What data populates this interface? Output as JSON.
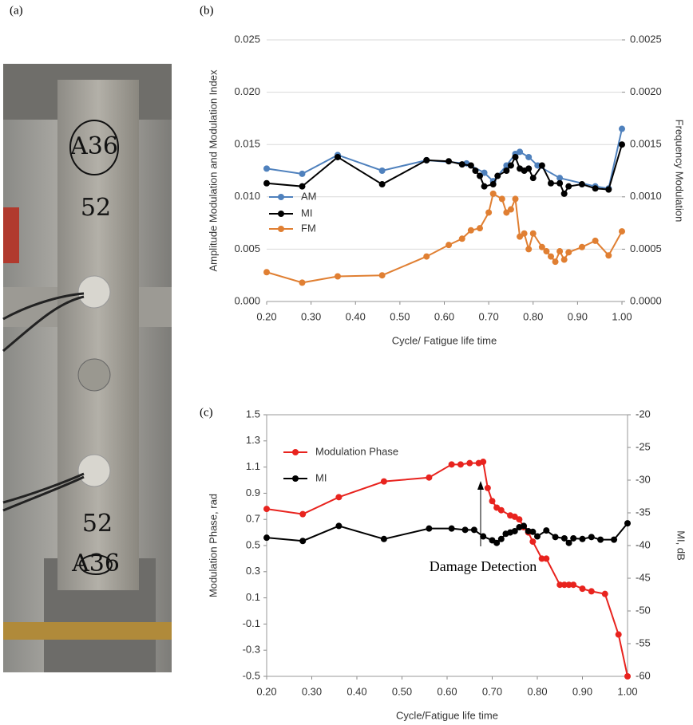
{
  "photo": {
    "label": "(a)",
    "texts": [
      "A36",
      "52",
      "52",
      "A36"
    ]
  },
  "chart_data": [
    {
      "type": "line",
      "label": "(b)",
      "x_label": "Cycle/ Fatigue life time",
      "y_label": "Amplitude Modulation and Modulation Index",
      "y2_label": "Frequency Modulation",
      "xlim": [
        0.2,
        1.0
      ],
      "xticks": [
        {
          "value": 0.2,
          "label": "0.20"
        },
        {
          "value": 0.3,
          "label": "0.30"
        },
        {
          "value": 0.4,
          "label": "0.40"
        },
        {
          "value": 0.5,
          "label": "0.50"
        },
        {
          "value": 0.6,
          "label": "0.60"
        },
        {
          "value": 0.7,
          "label": "0.70"
        },
        {
          "value": 0.8,
          "label": "0.80"
        },
        {
          "value": 0.9,
          "label": "0.90"
        },
        {
          "value": 1.0,
          "label": "1.00"
        }
      ],
      "ylim": [
        0,
        0.025
      ],
      "yticks": [
        {
          "value": 0,
          "label": "0.000"
        },
        {
          "value": 0.005,
          "label": "0.005"
        },
        {
          "value": 0.01,
          "label": "0.010"
        },
        {
          "value": 0.015,
          "label": "0.015"
        },
        {
          "value": 0.02,
          "label": "0.020"
        },
        {
          "value": 0.025,
          "label": "0.025"
        }
      ],
      "y2lim": [
        0,
        0.0025
      ],
      "y2ticks": [
        {
          "value": 0,
          "label": "0.0000"
        },
        {
          "value": 0.0005,
          "label": "0.0005"
        },
        {
          "value": 0.001,
          "label": "0.0010"
        },
        {
          "value": 0.0015,
          "label": "0.0015"
        },
        {
          "value": 0.002,
          "label": "0.0020"
        },
        {
          "value": 0.0025,
          "label": "0.0025"
        }
      ],
      "grid": true,
      "series": [
        {
          "name": "AM",
          "color": "#4f81bd",
          "x": [
            0.2,
            0.28,
            0.36,
            0.46,
            0.56,
            0.65,
            0.69,
            0.71,
            0.74,
            0.76,
            0.77,
            0.79,
            0.81,
            0.86,
            0.94,
            0.97,
            1.0
          ],
          "values": [
            0.0127,
            0.0122,
            0.014,
            0.0125,
            0.0135,
            0.0132,
            0.0123,
            0.0115,
            0.013,
            0.0141,
            0.0143,
            0.0138,
            0.013,
            0.0118,
            0.011,
            0.0108,
            0.0165
          ]
        },
        {
          "name": "MI",
          "color": "#000000",
          "x": [
            0.2,
            0.28,
            0.36,
            0.46,
            0.56,
            0.61,
            0.64,
            0.66,
            0.67,
            0.68,
            0.69,
            0.71,
            0.72,
            0.74,
            0.75,
            0.76,
            0.77,
            0.78,
            0.79,
            0.8,
            0.82,
            0.84,
            0.86,
            0.87,
            0.88,
            0.91,
            0.94,
            0.97,
            1.0
          ],
          "values": [
            0.0113,
            0.011,
            0.0138,
            0.0112,
            0.0135,
            0.0134,
            0.0131,
            0.013,
            0.0125,
            0.012,
            0.011,
            0.0112,
            0.012,
            0.0125,
            0.013,
            0.0138,
            0.0127,
            0.0125,
            0.0127,
            0.0118,
            0.013,
            0.0113,
            0.0113,
            0.0103,
            0.011,
            0.0112,
            0.0108,
            0.0107,
            0.015
          ]
        },
        {
          "name": "FM",
          "color": "#e07f32",
          "axis": "y2",
          "x": [
            0.2,
            0.28,
            0.36,
            0.46,
            0.56,
            0.61,
            0.64,
            0.66,
            0.68,
            0.7,
            0.71,
            0.73,
            0.74,
            0.75,
            0.76,
            0.77,
            0.78,
            0.79,
            0.8,
            0.82,
            0.83,
            0.84,
            0.85,
            0.86,
            0.87,
            0.88,
            0.91,
            0.94,
            0.97,
            1.0
          ],
          "values": [
            0.00028,
            0.00018,
            0.00024,
            0.00025,
            0.00043,
            0.00054,
            0.0006,
            0.00068,
            0.0007,
            0.00085,
            0.00103,
            0.00098,
            0.00085,
            0.00088,
            0.00098,
            0.00062,
            0.00065,
            0.0005,
            0.00065,
            0.00052,
            0.00048,
            0.00043,
            0.00038,
            0.00048,
            0.0004,
            0.00047,
            0.00052,
            0.00058,
            0.00044,
            0.00067
          ]
        }
      ]
    },
    {
      "type": "line",
      "label": "(c)",
      "x_label": "Cycle/Fatigue life time",
      "y_label": "Modulation Phase, rad",
      "y2_label": "MI, dB",
      "annotation": "Damage Detection",
      "xlim": [
        0.2,
        1.0
      ],
      "xticks": [
        {
          "value": 0.2,
          "label": "0.20"
        },
        {
          "value": 0.3,
          "label": "0.30"
        },
        {
          "value": 0.4,
          "label": "0.40"
        },
        {
          "value": 0.5,
          "label": "0.50"
        },
        {
          "value": 0.6,
          "label": "0.60"
        },
        {
          "value": 0.7,
          "label": "0.70"
        },
        {
          "value": 0.8,
          "label": "0.80"
        },
        {
          "value": 0.9,
          "label": "0.90"
        },
        {
          "value": 1.0,
          "label": "1.00"
        }
      ],
      "ylim": [
        -0.5,
        1.5
      ],
      "yticks": [
        -0.5,
        -0.3,
        -0.1,
        0.1,
        0.3,
        0.5,
        0.7,
        0.9,
        1.1,
        1.3,
        1.5
      ],
      "y2lim": [
        -60,
        -20
      ],
      "y2ticks": [
        -60,
        -55,
        -50,
        -45,
        -40,
        -35,
        -30,
        -25,
        -20
      ],
      "grid": false,
      "series": [
        {
          "name": "Modulation Phase",
          "color": "#e8231e",
          "x": [
            0.2,
            0.28,
            0.36,
            0.46,
            0.56,
            0.61,
            0.63,
            0.65,
            0.67,
            0.68,
            0.69,
            0.7,
            0.71,
            0.72,
            0.74,
            0.75,
            0.76,
            0.77,
            0.78,
            0.79,
            0.81,
            0.82,
            0.85,
            0.86,
            0.87,
            0.88,
            0.9,
            0.92,
            0.95,
            0.98,
            1.0
          ],
          "values": [
            0.78,
            0.74,
            0.87,
            0.99,
            1.02,
            1.12,
            1.12,
            1.13,
            1.13,
            1.14,
            0.94,
            0.84,
            0.79,
            0.77,
            0.73,
            0.72,
            0.7,
            0.64,
            0.6,
            0.53,
            0.4,
            0.4,
            0.2,
            0.2,
            0.2,
            0.2,
            0.17,
            0.15,
            0.13,
            -0.18,
            -0.5
          ]
        },
        {
          "name": "MI",
          "color": "#000000",
          "axis": "y2",
          "x": [
            0.2,
            0.28,
            0.36,
            0.46,
            0.56,
            0.61,
            0.64,
            0.66,
            0.68,
            0.7,
            0.71,
            0.72,
            0.73,
            0.74,
            0.75,
            0.76,
            0.77,
            0.78,
            0.79,
            0.8,
            0.82,
            0.84,
            0.86,
            0.87,
            0.88,
            0.9,
            0.92,
            0.94,
            0.97,
            1.0
          ],
          "values": [
            -38.8,
            -39.3,
            -37.0,
            -39.0,
            -37.4,
            -37.4,
            -37.6,
            -37.6,
            -38.6,
            -39.2,
            -39.6,
            -39.0,
            -38.2,
            -38.0,
            -37.8,
            -37.2,
            -37.0,
            -37.8,
            -37.9,
            -38.6,
            -37.7,
            -38.7,
            -38.9,
            -39.6,
            -38.9,
            -39.0,
            -38.7,
            -39.1,
            -39.1,
            -36.6
          ]
        }
      ]
    }
  ]
}
